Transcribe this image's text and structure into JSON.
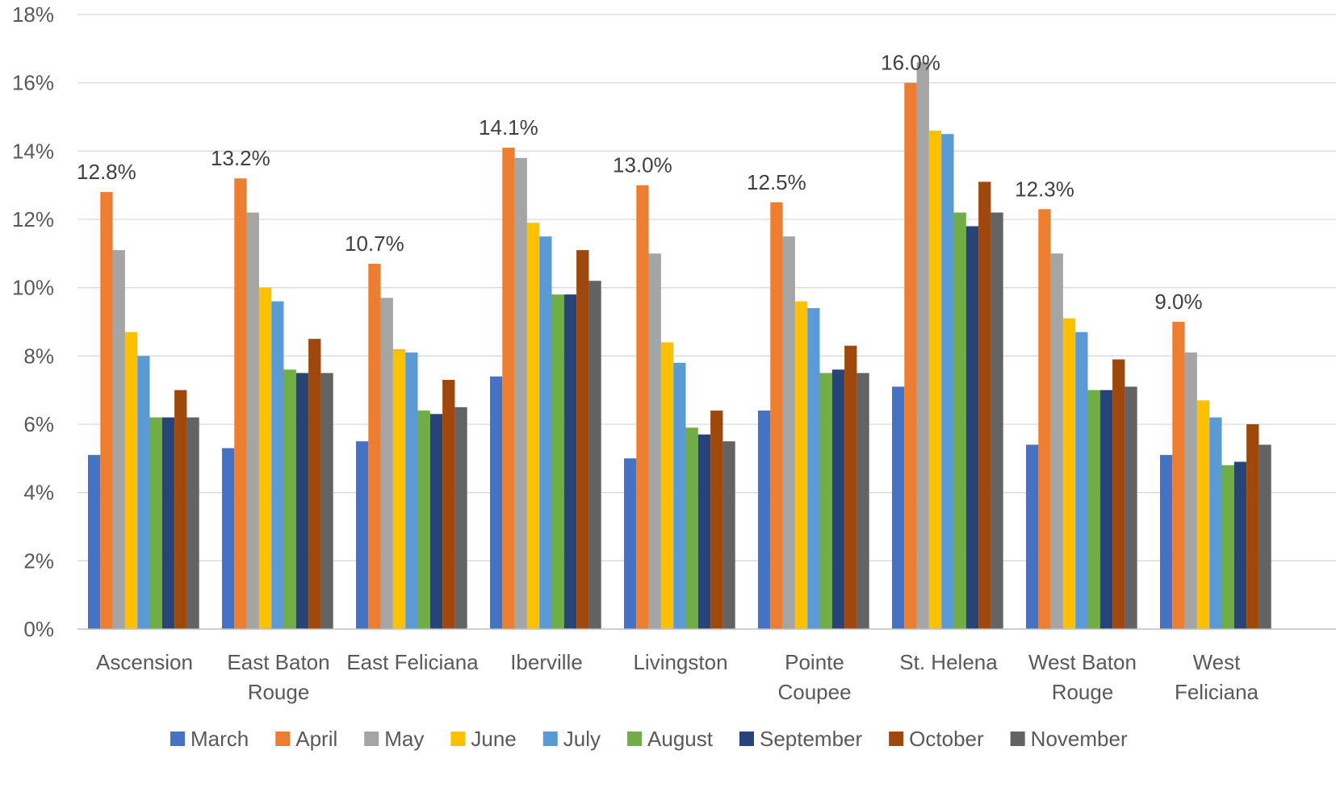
{
  "chart_data": {
    "type": "bar",
    "title": "",
    "xlabel": "",
    "ylabel": "",
    "ylim": [
      0,
      18
    ],
    "y_ticks": [
      0,
      2,
      4,
      6,
      8,
      10,
      12,
      14,
      16,
      18
    ],
    "y_tick_labels": [
      "0%",
      "2%",
      "4%",
      "6%",
      "8%",
      "10%",
      "12%",
      "14%",
      "16%",
      "18%"
    ],
    "grid": "horizontal",
    "legend_position": "bottom",
    "categories": [
      [
        "Ascension"
      ],
      [
        "East Baton",
        "Rouge"
      ],
      [
        "East Feliciana"
      ],
      [
        "Iberville"
      ],
      [
        "Livingston"
      ],
      [
        "Pointe",
        "Coupee"
      ],
      [
        "St. Helena"
      ],
      [
        "West Baton",
        "Rouge"
      ],
      [
        "West",
        "Feliciana"
      ]
    ],
    "series": [
      {
        "name": "March",
        "color": "#4472C4",
        "values": [
          5.1,
          5.3,
          5.5,
          7.4,
          5.0,
          6.4,
          7.1,
          5.4,
          5.1
        ]
      },
      {
        "name": "April",
        "color": "#ED7D31",
        "values": [
          12.8,
          13.2,
          10.7,
          14.1,
          13.0,
          12.5,
          16.0,
          12.3,
          9.0
        ]
      },
      {
        "name": "May",
        "color": "#A5A5A5",
        "values": [
          11.1,
          12.2,
          9.7,
          13.8,
          11.0,
          11.5,
          16.6,
          11.0,
          8.1
        ]
      },
      {
        "name": "June",
        "color": "#FFC000",
        "values": [
          8.7,
          10.0,
          8.2,
          11.9,
          8.4,
          9.6,
          14.6,
          9.1,
          6.7
        ]
      },
      {
        "name": "July",
        "color": "#5B9BD5",
        "values": [
          8.0,
          9.6,
          8.1,
          11.5,
          7.8,
          9.4,
          14.5,
          8.7,
          6.2
        ]
      },
      {
        "name": "August",
        "color": "#70AD47",
        "values": [
          6.2,
          7.6,
          6.4,
          9.8,
          5.9,
          7.5,
          12.2,
          7.0,
          4.8
        ]
      },
      {
        "name": "September",
        "color": "#264478",
        "values": [
          6.2,
          7.5,
          6.3,
          9.8,
          5.7,
          7.6,
          11.8,
          7.0,
          4.9
        ]
      },
      {
        "name": "October",
        "color": "#9E480E",
        "values": [
          7.0,
          8.5,
          7.3,
          11.1,
          6.4,
          8.3,
          13.1,
          7.9,
          6.0
        ]
      },
      {
        "name": "November",
        "color": "#636363",
        "values": [
          6.2,
          7.5,
          6.5,
          10.2,
          5.5,
          7.5,
          12.2,
          7.1,
          5.4
        ]
      }
    ],
    "data_labels": [
      {
        "series": "April",
        "category_index": 0,
        "text": "12.8%"
      },
      {
        "series": "April",
        "category_index": 1,
        "text": "13.2%"
      },
      {
        "series": "April",
        "category_index": 2,
        "text": "10.7%"
      },
      {
        "series": "April",
        "category_index": 3,
        "text": "14.1%"
      },
      {
        "series": "April",
        "category_index": 4,
        "text": "13.0%"
      },
      {
        "series": "April",
        "category_index": 5,
        "text": "12.5%"
      },
      {
        "series": "April",
        "category_index": 6,
        "text": "16.0%"
      },
      {
        "series": "April",
        "category_index": 7,
        "text": "12.3%"
      },
      {
        "series": "April",
        "category_index": 8,
        "text": "9.0%"
      }
    ],
    "colors": {
      "gridline": "#D9D9D9",
      "axis": "#BFBFBF",
      "text": "#595959"
    }
  }
}
